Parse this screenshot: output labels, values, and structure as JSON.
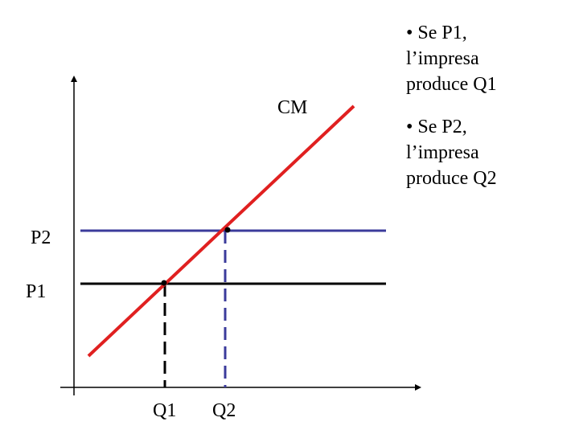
{
  "curve": {
    "label": "CM"
  },
  "prices": [
    {
      "label": "P1"
    },
    {
      "label": "P2"
    }
  ],
  "quantities": [
    {
      "label": "Q1"
    },
    {
      "label": "Q2"
    }
  ],
  "bullets": [
    {
      "lines": [
        "• Se P1,",
        "l’impresa",
        "produce Q1"
      ]
    },
    {
      "lines": [
        "• Se P2,",
        "l’impresa",
        "produce Q2"
      ]
    }
  ]
}
